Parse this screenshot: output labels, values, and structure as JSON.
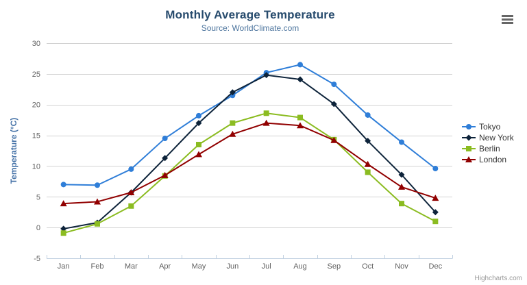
{
  "chart": {
    "title": "Monthly Average Temperature",
    "subtitle": "Source: WorldClimate.com",
    "credits_label": "Highcharts.com"
  },
  "chart_data": {
    "type": "line",
    "title": "Monthly Average Temperature",
    "subtitle": "Source: WorldClimate.com",
    "categories": [
      "Jan",
      "Feb",
      "Mar",
      "Apr",
      "May",
      "Jun",
      "Jul",
      "Aug",
      "Sep",
      "Oct",
      "Nov",
      "Dec"
    ],
    "xlabel": "",
    "ylabel": "Temperature (°C)",
    "ylim": [
      -5,
      30
    ],
    "ytick_interval": 5,
    "grid": true,
    "legend_position": "right",
    "series": [
      {
        "name": "Tokyo",
        "color": "#2f7ed8",
        "marker": "circle",
        "values": [
          7.0,
          6.9,
          9.5,
          14.5,
          18.2,
          21.5,
          25.2,
          26.5,
          23.3,
          18.3,
          13.9,
          9.6
        ]
      },
      {
        "name": "New York",
        "color": "#0d233a",
        "marker": "diamond",
        "values": [
          -0.2,
          0.8,
          5.7,
          11.3,
          17.0,
          22.0,
          24.8,
          24.1,
          20.1,
          14.1,
          8.6,
          2.5
        ]
      },
      {
        "name": "Berlin",
        "color": "#8bbc21",
        "marker": "square",
        "values": [
          -0.9,
          0.6,
          3.5,
          8.4,
          13.5,
          17.0,
          18.6,
          17.9,
          14.3,
          9.0,
          3.9,
          1.0
        ]
      },
      {
        "name": "London",
        "color": "#910000",
        "marker": "triangle",
        "values": [
          3.9,
          4.2,
          5.7,
          8.5,
          11.9,
          15.2,
          17.0,
          16.6,
          14.2,
          10.3,
          6.6,
          4.8
        ]
      }
    ]
  }
}
